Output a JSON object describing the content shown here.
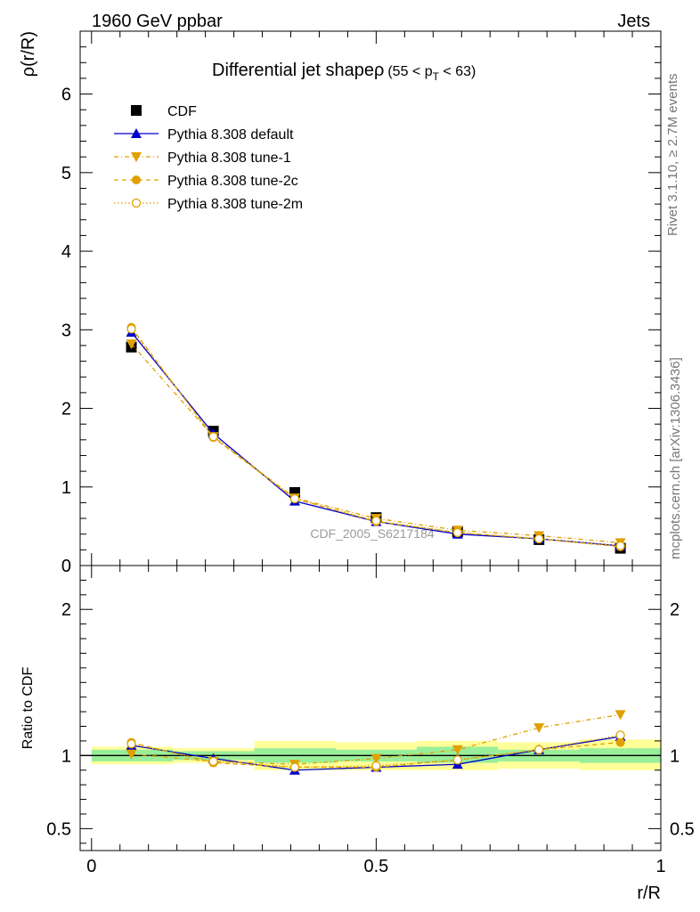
{
  "header": {
    "left": "1960 GeV ppbar",
    "right": "Jets"
  },
  "side": {
    "top": "Rivet 3.1.10, ≥ 2.7M events",
    "bottom": "mcplots.cern.ch [arXiv:1306.3436]"
  },
  "chart_data": [
    {
      "type": "line",
      "title": "Differential jet shapeρ",
      "title_cut": "(55 < p",
      "title_cut_sub": "T",
      "title_cut_end": " < 63)",
      "ylabel": "ρ(r/R)",
      "ylim": [
        0,
        6.8
      ],
      "xlim": [
        -0.02,
        1.0
      ],
      "yticks": [
        0,
        1,
        2,
        3,
        4,
        5,
        6
      ],
      "ytick_labels": [
        "0",
        "1",
        "2",
        "3",
        "4",
        "5",
        "6"
      ],
      "watermark": "CDF_2005_S6217184",
      "legend_position": "top-left",
      "x": [
        0.07,
        0.214,
        0.357,
        0.5,
        0.643,
        0.786,
        0.929
      ],
      "series": [
        {
          "name": "CDF",
          "color": "#000000",
          "marker": "square",
          "values": [
            2.78,
            1.71,
            0.93,
            0.61,
            0.43,
            0.33,
            0.22
          ]
        },
        {
          "name": "Pythia 8.308 default",
          "color": "#0000cc",
          "marker": "triangle-up",
          "line": "solid",
          "values": [
            2.97,
            1.68,
            0.82,
            0.56,
            0.4,
            0.34,
            0.25
          ]
        },
        {
          "name": "Pythia 8.308 tune-1",
          "color": "#e0a000",
          "marker": "triangle-down",
          "line": "dashdot",
          "values": [
            2.82,
            1.64,
            0.86,
            0.6,
            0.45,
            0.38,
            0.29
          ]
        },
        {
          "name": "Pythia 8.308 tune-2c",
          "color": "#e0a000",
          "marker": "circle-filled",
          "line": "dashed",
          "values": [
            3.03,
            1.63,
            0.85,
            0.56,
            0.42,
            0.34,
            0.24
          ]
        },
        {
          "name": "Pythia 8.308 tune-2m",
          "color": "#e0a000",
          "marker": "circle-open",
          "line": "dotted",
          "values": [
            3.01,
            1.64,
            0.85,
            0.57,
            0.42,
            0.34,
            0.25
          ]
        }
      ]
    },
    {
      "type": "line",
      "xlabel": "r/R",
      "ylabel": "Ratio to CDF",
      "ylim": [
        0.35,
        2.3
      ],
      "yticks": [
        0.5,
        1,
        2
      ],
      "ytick_labels": [
        "0.5",
        "1",
        "2"
      ],
      "xticks": [
        0,
        0.5,
        1
      ],
      "xtick_labels": [
        "0",
        "0.5",
        "1"
      ],
      "band_edges": [
        0.0,
        0.143,
        0.286,
        0.429,
        0.571,
        0.714,
        0.857,
        1.0
      ],
      "band_inner": [
        [
          0.96,
          1.04
        ],
        [
          0.97,
          1.03
        ],
        [
          0.95,
          1.05
        ],
        [
          0.96,
          1.04
        ],
        [
          0.95,
          1.06
        ],
        [
          0.96,
          1.04
        ],
        [
          0.95,
          1.05
        ]
      ],
      "band_outer": [
        [
          0.94,
          1.06
        ],
        [
          0.95,
          1.05
        ],
        [
          0.9,
          1.1
        ],
        [
          0.9,
          1.09
        ],
        [
          0.9,
          1.1
        ],
        [
          0.91,
          1.09
        ],
        [
          0.9,
          1.11
        ]
      ],
      "x": [
        0.07,
        0.214,
        0.357,
        0.5,
        0.643,
        0.786,
        0.929
      ],
      "series": [
        {
          "name": "Pythia 8.308 default",
          "color": "#0000cc",
          "marker": "triangle-up",
          "line": "solid",
          "values": [
            1.07,
            0.98,
            0.9,
            0.92,
            0.94,
            1.04,
            1.13
          ]
        },
        {
          "name": "Pythia 8.308 tune-1",
          "color": "#e0a000",
          "marker": "triangle-down",
          "line": "dashdot",
          "values": [
            1.01,
            0.96,
            0.94,
            0.98,
            1.04,
            1.19,
            1.28
          ]
        },
        {
          "name": "Pythia 8.308 tune-2c",
          "color": "#e0a000",
          "marker": "circle-filled",
          "line": "dashed",
          "values": [
            1.09,
            0.95,
            0.92,
            0.92,
            0.97,
            1.04,
            1.09
          ]
        },
        {
          "name": "Pythia 8.308 tune-2m",
          "color": "#e0a000",
          "marker": "circle-open",
          "line": "dotted",
          "values": [
            1.08,
            0.96,
            0.92,
            0.93,
            0.97,
            1.04,
            1.14
          ]
        }
      ]
    }
  ]
}
